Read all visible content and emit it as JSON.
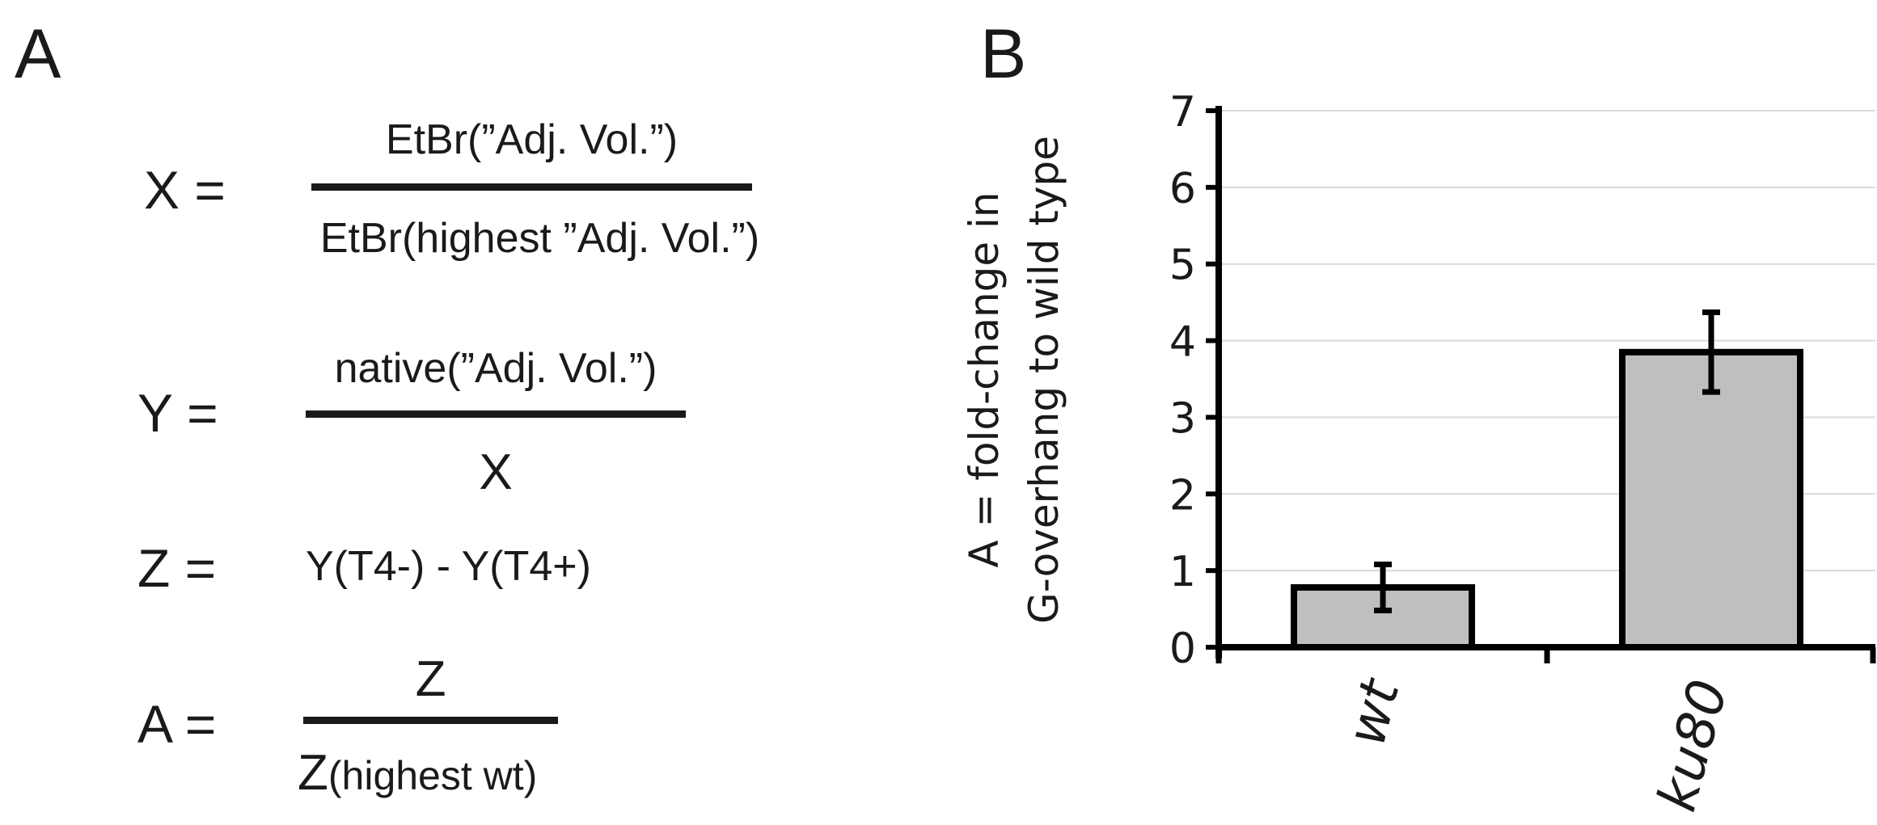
{
  "panels": {
    "a_label": "A",
    "b_label": "B"
  },
  "equations": {
    "x": {
      "lhs": "X =",
      "numerator": "EtBr(”Adj. Vol.”)",
      "denominator": "EtBr(highest ”Adj. Vol.”)"
    },
    "y": {
      "lhs": "Y =",
      "numerator": "native(”Adj. Vol.”)",
      "denominator": "X"
    },
    "z": {
      "lhs": "Z =",
      "rhs": "Y(T4-) - Y(T4+)"
    },
    "a": {
      "lhs": "A =",
      "numerator": "Z",
      "denominator_main": "Z",
      "denominator_rest": "(highest wt)"
    }
  },
  "chart_data": {
    "type": "bar",
    "categories": [
      "wt",
      "ku80"
    ],
    "values": [
      0.78,
      3.85
    ],
    "error": [
      0.3,
      0.52
    ],
    "ylabel_line1": "A = fold-change in",
    "ylabel_line2": "G-overhang to wild type",
    "ylim": [
      0,
      7
    ],
    "yticks": [
      0,
      1,
      2,
      3,
      4,
      5,
      6,
      7
    ],
    "grid": true,
    "bar_color": "#bfbfbf",
    "edge_color": "#000000",
    "grid_color": "#d9d9d9"
  }
}
